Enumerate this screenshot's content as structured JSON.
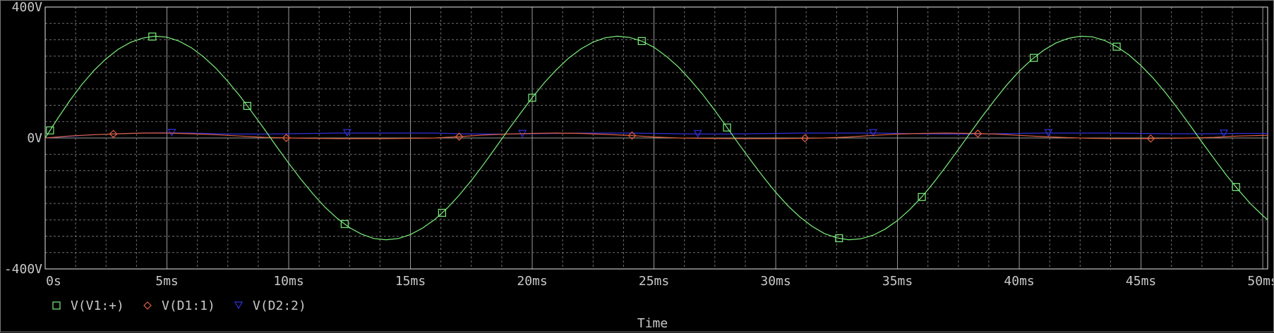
{
  "chart_data": {
    "type": "line",
    "title": "",
    "xlabel": "Time",
    "ylabel": "",
    "xlim": [
      0,
      50.2
    ],
    "ylim": [
      -400,
      400
    ],
    "x_unit": "ms",
    "y_unit": "V",
    "x_ticks": [
      0,
      5,
      10,
      15,
      20,
      25,
      30,
      35,
      40,
      45,
      50
    ],
    "x_tick_labels": [
      "0s",
      "5ms",
      "10ms",
      "15ms",
      "20ms",
      "25ms",
      "30ms",
      "35ms",
      "40ms",
      "45ms",
      "50ms"
    ],
    "y_ticks": [
      -400,
      0,
      400
    ],
    "y_tick_labels": [
      "-400V",
      "0V",
      "400V"
    ],
    "grid": true,
    "legend_position": "bottom-left",
    "series": [
      {
        "name": "V(V1:+)",
        "color": "#7cf07c",
        "marker": "square",
        "x": [
          0,
          0.5,
          1,
          1.5,
          2,
          2.5,
          3,
          3.5,
          4,
          4.5,
          5,
          5.5,
          6,
          6.5,
          7,
          7.5,
          8,
          8.5,
          9,
          9.5,
          10,
          10.5,
          11,
          11.5,
          12,
          12.5,
          13,
          13.5,
          14,
          14.5,
          15,
          15.5,
          16,
          16.5,
          17,
          17.5,
          18,
          18.5,
          19,
          19.5,
          20,
          20.5,
          21,
          21.5,
          22,
          22.5,
          23,
          23.5,
          24,
          24.5,
          25,
          25.5,
          26,
          26.5,
          27,
          27.5,
          28,
          28.5,
          29,
          29.5,
          30,
          30.5,
          31,
          31.5,
          32,
          32.5,
          33,
          33.5,
          34,
          34.5,
          35,
          35.5,
          36,
          36.5,
          37,
          37.5,
          38,
          38.5,
          39,
          39.5,
          40,
          40.5,
          41,
          41.5,
          42,
          42.5,
          43,
          43.5,
          44,
          44.5,
          45,
          45.5,
          46,
          46.5,
          47,
          47.5,
          48,
          48.5,
          49,
          49.5,
          50,
          50.2
        ],
        "values": [
          0,
          58,
          113,
          163,
          206,
          242,
          271,
          292,
          305,
          311,
          308,
          296,
          276,
          248,
          214,
          173,
          128,
          78,
          27,
          -26,
          -77,
          -126,
          -171,
          -212,
          -246,
          -274,
          -294,
          -307,
          -311,
          -307,
          -295,
          -275,
          -249,
          -215,
          -175,
          -130,
          -81,
          -29,
          23,
          74,
          123,
          169,
          209,
          244,
          272,
          293,
          306,
          311,
          307,
          296,
          277,
          250,
          217,
          177,
          133,
          84,
          32,
          -20,
          -71,
          -120,
          -166,
          -207,
          -242,
          -270,
          -292,
          -305,
          -311,
          -308,
          -297,
          -278,
          -252,
          -219,
          -180,
          -135,
          -86,
          -35,
          17,
          68,
          117,
          163,
          204,
          239,
          268,
          290,
          304,
          311,
          309,
          298,
          279,
          254,
          221,
          183,
          139,
          91,
          40,
          -12,
          -63,
          -113,
          -159,
          -201,
          -237,
          -250
        ]
      },
      {
        "name": "V(D1:1)",
        "color": "#e06040",
        "marker": "diamond",
        "x": [
          0,
          1,
          2,
          3,
          4,
          5,
          6,
          7,
          8,
          9,
          10,
          11,
          12,
          13,
          14,
          15,
          16,
          17,
          18,
          19,
          20,
          21,
          22,
          23,
          24,
          25,
          26,
          27,
          28,
          29,
          30,
          31,
          32,
          33,
          34,
          35,
          36,
          37,
          38,
          39,
          40,
          41,
          42,
          43,
          44,
          45,
          46,
          47,
          48,
          49,
          50,
          50.2
        ],
        "values": [
          0,
          6,
          10,
          13,
          15,
          15,
          13,
          10,
          6,
          2,
          0,
          -1,
          -2,
          -2,
          -2,
          -1,
          0,
          4,
          9,
          12,
          14,
          15,
          14,
          11,
          8,
          3,
          0,
          -1,
          -2,
          -2,
          -2,
          -1,
          0,
          3,
          8,
          12,
          14,
          15,
          14,
          12,
          8,
          4,
          1,
          -1,
          -2,
          -2,
          -1,
          0,
          2,
          6,
          8,
          8
        ]
      },
      {
        "name": "V(D2:2)",
        "color": "#3030d8",
        "marker": "triangle",
        "x": [
          0,
          1,
          2,
          3,
          4,
          5,
          6,
          7,
          8,
          9,
          10,
          11,
          12,
          13,
          14,
          15,
          16,
          17,
          18,
          19,
          20,
          21,
          22,
          23,
          24,
          25,
          26,
          27,
          28,
          29,
          30,
          31,
          32,
          33,
          34,
          35,
          36,
          37,
          38,
          39,
          40,
          41,
          42,
          43,
          44,
          45,
          46,
          47,
          48,
          49,
          50,
          50.2
        ],
        "values": [
          0,
          5,
          10,
          13,
          15,
          16,
          15,
          13,
          12,
          12,
          13,
          14,
          15,
          15,
          15,
          15,
          15,
          13,
          12,
          12,
          13,
          14,
          15,
          15,
          15,
          14,
          13,
          12,
          12,
          13,
          14,
          15,
          15,
          15,
          15,
          14,
          13,
          12,
          12,
          13,
          14,
          15,
          15,
          15,
          15,
          14,
          13,
          13,
          13,
          14,
          14,
          14
        ]
      }
    ],
    "markers": {
      "V(V1:+)": [
        0.2,
        4.4,
        8.3,
        12.3,
        16.3,
        20.0,
        24.5,
        28.0,
        32.6,
        36.0,
        40.6,
        44.0,
        48.9
      ],
      "V(D1:1)": [
        2.8,
        9.9,
        17.0,
        24.1,
        31.2,
        38.3,
        45.4
      ],
      "V(D2:2)": [
        5.2,
        12.4,
        19.6,
        26.8,
        34.0,
        41.2,
        48.4
      ]
    }
  }
}
